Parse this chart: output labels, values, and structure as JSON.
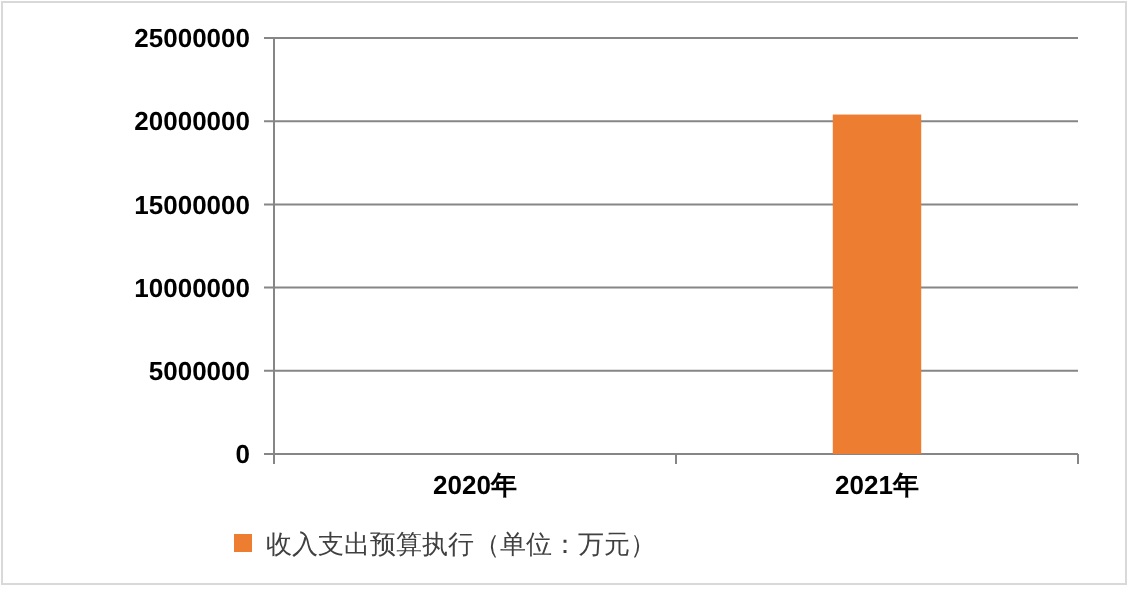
{
  "chart_data": {
    "type": "bar",
    "categories": [
      "2020年",
      "2021年"
    ],
    "series": [
      {
        "name": "收入支出预算执行（单位：万元）",
        "color": "#ed7d31",
        "values": [
          null,
          20400000
        ]
      }
    ],
    "ylim": [
      0,
      25000000
    ],
    "yticks": [
      0,
      5000000,
      10000000,
      15000000,
      20000000,
      25000000
    ],
    "grid": "y",
    "legend": "bottom"
  }
}
